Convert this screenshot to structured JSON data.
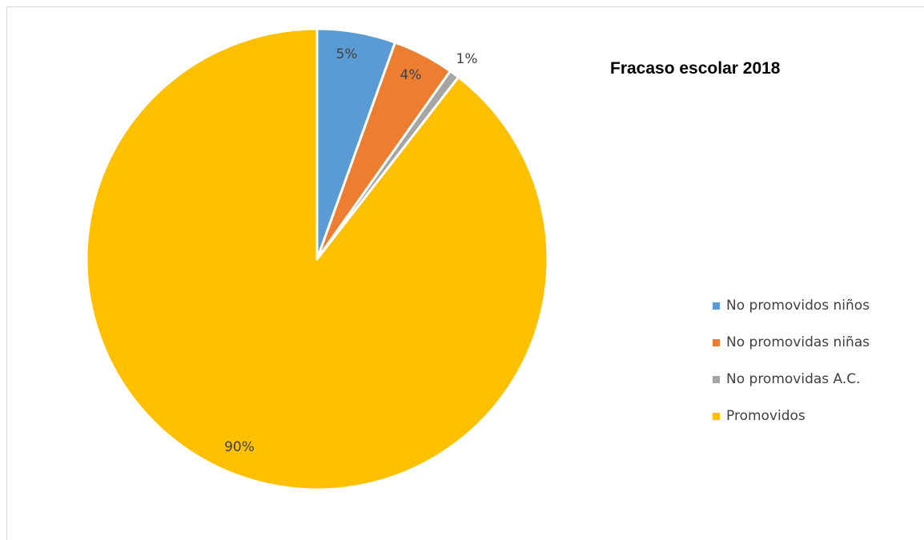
{
  "chart_data": {
    "type": "pie",
    "title": "Fracaso escolar 2018",
    "categories": [
      "No promovidos niños",
      "No promovidas niñas",
      "No promovidas A.C.",
      "Promovidos"
    ],
    "values": [
      5.5,
      4.3,
      0.7,
      89.5
    ],
    "data_labels": [
      "5%",
      "4%",
      "1%",
      "90%"
    ],
    "colors": [
      "#5b9bd5",
      "#ed7d31",
      "#a5a5a5",
      "#ffc000"
    ],
    "legend_position": "right",
    "start_angle_deg": 0,
    "direction": "clockwise"
  }
}
